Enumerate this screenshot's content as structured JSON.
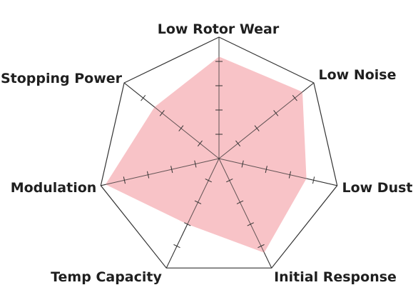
{
  "chart_data": {
    "type": "radar",
    "axes": [
      "Low Rotor Wear",
      "Low Noise",
      "Low Dust",
      "Initial Response",
      "Temp Capacity",
      "Modulation",
      "Stopping Power"
    ],
    "values": [
      8.4,
      8.8,
      7.4,
      8.6,
      6.0,
      9.6,
      6.8
    ],
    "range": [
      0,
      10
    ],
    "ticks": [
      2,
      4,
      6,
      8
    ],
    "grid": "outer polygon only",
    "fill_color": "#f8c0c4",
    "line_color": "#333333"
  }
}
